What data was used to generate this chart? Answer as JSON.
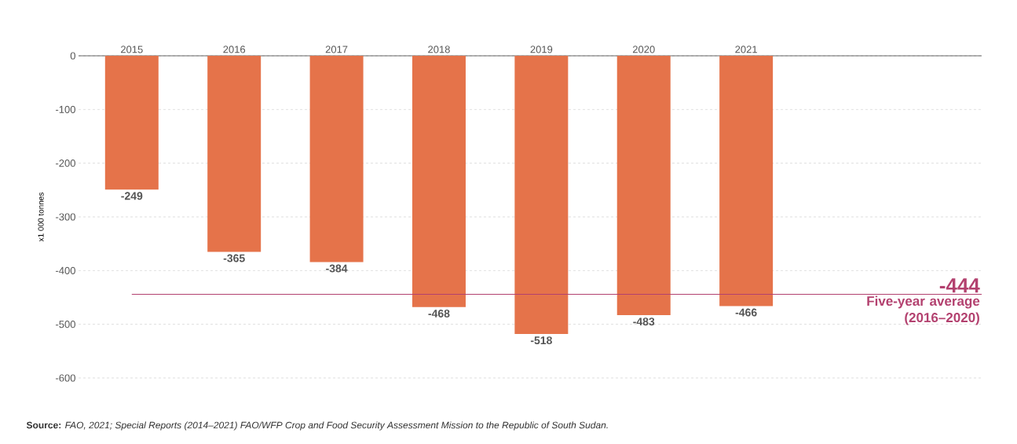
{
  "chart_data": {
    "type": "bar",
    "ylabel": "x1 000 tonnes",
    "categories": [
      "2015",
      "2016",
      "2017",
      "2018",
      "2019",
      "2020",
      "2021"
    ],
    "values": [
      -249,
      -365,
      -384,
      -468,
      -518,
      -483,
      -466
    ],
    "value_labels": [
      "-249",
      "-365",
      "-384",
      "-468",
      "-518",
      "-483",
      "-466"
    ],
    "color": "#e5734a",
    "ylim": [
      -600,
      0
    ],
    "yticks": [
      0,
      -100,
      -200,
      -300,
      -400,
      -500,
      -600
    ],
    "grid": "y",
    "ref_lines": [
      {
        "axis": "y",
        "value": -444,
        "label": "Five-year average (2016–2020)",
        "color": "#b3416f"
      }
    ],
    "annotations": [
      {
        "text": "-444",
        "y": -444
      },
      "**Source:** *FAO, 2021; Special Reports (2014–2021) FAO/WFP Crop and Food Security Assessment Mission to the Republic of South Sudan.*"
    ]
  }
}
